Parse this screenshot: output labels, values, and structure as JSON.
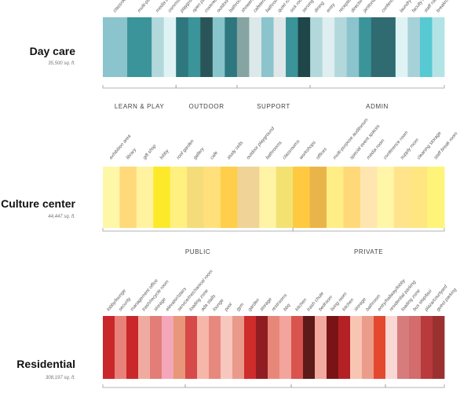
{
  "chart_data": [
    {
      "type": "bar",
      "title": "Day care",
      "subtitle": "35,500 sq. ft.",
      "categories": [
        "classrooms",
        "multi-purpose room",
        "media center",
        "common area",
        "playground",
        "open play area",
        "covered patio",
        "outdoor storage",
        "bathrooms",
        "showers",
        "cafeteria",
        "bathrooms",
        "quiet room",
        "sick room",
        "serving",
        "dining",
        "entry",
        "reception",
        "director's office",
        "janitorial",
        "conference",
        "laundry",
        "faculty lounge",
        "staff room",
        "breakroom"
      ],
      "values": [
        2,
        2,
        1,
        1,
        1,
        1,
        1,
        1,
        1,
        1,
        1,
        1,
        1,
        1,
        1,
        1,
        1,
        1,
        1,
        1,
        2,
        1,
        1,
        1,
        1
      ],
      "colors": [
        "#8bc4cc",
        "#3a9499",
        "#b2d8db",
        "#dff3f5",
        "#2f777e",
        "#3a9499",
        "#2a5558",
        "#88c4cc",
        "#2f777e",
        "#86a5a2",
        "#dce9ea",
        "#8bc4cc",
        "#dfe7e8",
        "#3a9499",
        "#1f4648",
        "#b2d8db",
        "#dfeef0",
        "#b2d8db",
        "#8bc4cc",
        "#3a9499",
        "#2f6b71",
        "#dff3f5",
        "#a7d1d8",
        "#56c9d2",
        "#b2e4e6"
      ],
      "groups": [
        {
          "name": "LEARN & PLAY",
          "start": 0,
          "end": 4
        },
        {
          "name": "OUTDOOR",
          "start": 4,
          "end": 9
        },
        {
          "name": "SUPPORT",
          "start": 9,
          "end": 15
        },
        {
          "name": "ADMIN",
          "start": 15,
          "end": 25
        }
      ]
    },
    {
      "type": "bar",
      "title": "Culture center",
      "subtitle": "44,447 sq. ft.",
      "categories": [
        "exhibition area",
        "library",
        "gift shop",
        "lobby",
        "roof garden",
        "gallery",
        "cafe",
        "study cells",
        "outdoor playground",
        "bathrooms",
        "classrooms",
        "workshops",
        "offices",
        "multi-purpose auditorium",
        "special event spaces",
        "media room",
        "conference room",
        "supply room",
        "cleaning storage",
        "staff break room"
      ],
      "values": [
        1,
        1,
        1,
        1,
        1,
        1,
        1,
        1,
        1.3,
        1,
        1,
        1,
        1,
        1,
        1,
        1,
        1,
        1,
        1,
        1
      ],
      "colors": [
        "#fff7a8",
        "#ffd97a",
        "#fff3a0",
        "#fce92a",
        "#fff080",
        "#f5dc7a",
        "#ffe07a",
        "#ffce4a",
        "#f0d396",
        "#fff3a6",
        "#f3e272",
        "#ffc940",
        "#e9b54a",
        "#ffed86",
        "#ffd977",
        "#ffe6b0",
        "#fff6a8",
        "#ffe48c",
        "#ffe680",
        "#fff47a"
      ],
      "groups": [
        {
          "name": "PUBLIC",
          "start": 0,
          "end": 11
        },
        {
          "name": "PRIVATE",
          "start": 11,
          "end": 20
        }
      ]
    },
    {
      "type": "bar",
      "title": "Residential",
      "subtitle": "308,197 sq. ft.",
      "categories": [
        "lobby/lounge",
        "security",
        "management office",
        "trash/recycle room",
        "storage",
        "elevator/stairs",
        "service/mechanical room",
        "loading zone",
        "ada stalls",
        "lounge",
        "pool",
        "gym",
        "garden",
        "storage",
        "restrooms",
        "bbq",
        "kitchen",
        "trash chute",
        "bedroom",
        "living room",
        "kitchen",
        "storage",
        "bathroom",
        "entry/hallway/lobby",
        "residential parking",
        "loading zone",
        "bus stop/taxi",
        "plaza/courtyard",
        "guest parking"
      ],
      "values": [
        1,
        1,
        1,
        1,
        1,
        1,
        1,
        1,
        1,
        1,
        1,
        1,
        1,
        1,
        1,
        1,
        1,
        1,
        1,
        1,
        1,
        1,
        1,
        1,
        1,
        1,
        1,
        1,
        1
      ],
      "colors": [
        "#c9272a",
        "#e8817a",
        "#c9272a",
        "#f0aba0",
        "#e37d78",
        "#f4a7b9",
        "#e8977a",
        "#d64a49",
        "#f6b7a9",
        "#e7887f",
        "#f7c7be",
        "#ea9a8a",
        "#cf2c2c",
        "#8f1d21",
        "#e7877a",
        "#f3a49c",
        "#d8544d",
        "#5c1a19",
        "#f2a9a0",
        "#7a1316",
        "#b32125",
        "#f8c5b3",
        "#ec9c8b",
        "#e3492f",
        "#f8d7d4",
        "#d77c7c",
        "#d36c6c",
        "#b83a3c",
        "#9b3031"
      ],
      "groups": [
        {
          "name": "",
          "start": 0,
          "end": 7
        },
        {
          "name": "",
          "start": 7,
          "end": 16
        },
        {
          "name": "",
          "start": 16,
          "end": 24
        },
        {
          "name": "",
          "start": 24,
          "end": 29
        }
      ]
    }
  ]
}
